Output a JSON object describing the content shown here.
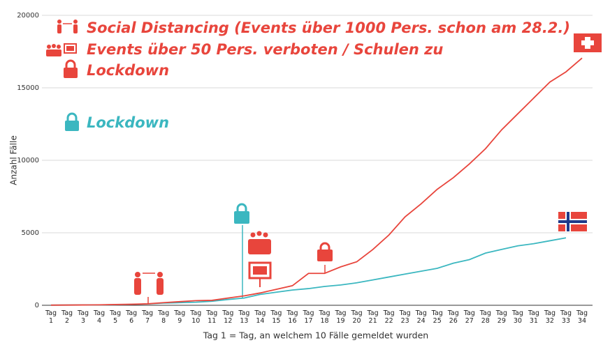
{
  "chart_data": {
    "type": "line",
    "y_label": "Anzahl Fälle",
    "x_label": "Tag 1 = Tag, an welchem 10 Fälle gemeldet wurden",
    "annotations": [
      "Social Distancing (Events über 1000 Pers. schon am 28.2.)",
      "Events über 50 Pers. verboten / Schulen zu",
      "Lockdown",
      "Lockdown"
    ],
    "categories": [
      "Tag 1",
      "Tag 2",
      "Tag 3",
      "Tag 4",
      "Tag 5",
      "Tag 6",
      "Tag 7",
      "Tag 8",
      "Tag 9",
      "Tag 10",
      "Tag 11",
      "Tag 12",
      "Tag 13",
      "Tag 14",
      "Tag 15",
      "Tag 16",
      "Tag 17",
      "Tag 18",
      "Tag 19",
      "Tag 20",
      "Tag 21",
      "Tag 22",
      "Tag 23",
      "Tag 24",
      "Tag 25",
      "Tag 26",
      "Tag 27",
      "Tag 28",
      "Tag 29",
      "Tag 30",
      "Tag 31",
      "Tag 32",
      "Tag 33",
      "Tag 34"
    ],
    "series": [
      {
        "color": "#e8453c",
        "values": [
          10,
          15,
          20,
          30,
          50,
          70,
          100,
          180,
          250,
          320,
          340,
          500,
          650,
          850,
          1100,
          1350,
          2200,
          2200,
          2650,
          3000,
          3850,
          4850,
          6100,
          7000,
          8000,
          8800,
          9750,
          10800,
          12100,
          13200,
          14300,
          15400,
          16100,
          17050
        ]
      },
      {
        "color": "#3bb7c0",
        "values": [
          10,
          15,
          20,
          25,
          40,
          60,
          90,
          150,
          180,
          210,
          280,
          400,
          500,
          750,
          900,
          1050,
          1150,
          1300,
          1400,
          1550,
          1750,
          1950,
          2150,
          2350,
          2550,
          2900,
          3150,
          3600,
          3850,
          4100,
          4250,
          4450,
          4650,
          null
        ]
      }
    ],
    "ylim": [
      0,
      20000
    ],
    "yticks": [
      0,
      5000,
      10000,
      15000,
      20000
    ],
    "grid": true
  }
}
